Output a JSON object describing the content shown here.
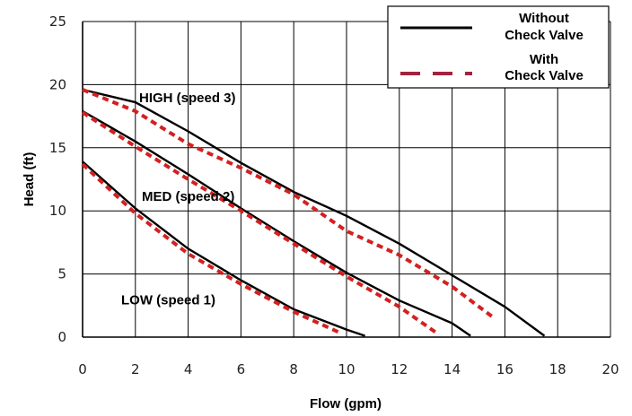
{
  "chart_data": {
    "type": "line",
    "xlabel": "Flow (gpm)",
    "ylabel": "Head (ft)",
    "xlim": [
      0,
      20
    ],
    "ylim": [
      0,
      25
    ],
    "x_ticks": [
      "0",
      "2",
      "4",
      "6",
      "8",
      "10",
      "12",
      "14",
      "16",
      "18",
      "20"
    ],
    "y_ticks": [
      "0",
      "5",
      "10",
      "15",
      "20",
      "25"
    ],
    "grid": true,
    "legend_position": "top-right",
    "legend": [
      {
        "label_line1": "Without",
        "label_line2": "Check Valve",
        "color": "#000000",
        "style": "solid"
      },
      {
        "label_line1": "With",
        "label_line2": "Check Valve",
        "color": "#d42020",
        "style": "dashed"
      }
    ],
    "curves": [
      {
        "label": "HIGH (speed 3)",
        "without": [
          [
            0,
            19.6
          ],
          [
            2,
            18.6
          ],
          [
            4,
            16.3
          ],
          [
            6,
            13.8
          ],
          [
            8,
            11.5
          ],
          [
            10,
            9.6
          ],
          [
            12,
            7.4
          ],
          [
            14,
            4.9
          ],
          [
            16,
            2.4
          ],
          [
            17.5,
            0.1
          ]
        ],
        "with": [
          [
            0,
            19.6
          ],
          [
            2,
            17.9
          ],
          [
            4,
            15.3
          ],
          [
            6,
            13.4
          ],
          [
            8,
            11.3
          ],
          [
            10,
            8.4
          ],
          [
            12,
            6.5
          ],
          [
            14,
            4.0
          ],
          [
            15.6,
            1.5
          ]
        ]
      },
      {
        "label": "MED (speed 2)",
        "without": [
          [
            0,
            17.9
          ],
          [
            2,
            15.5
          ],
          [
            4,
            12.9
          ],
          [
            6,
            10.2
          ],
          [
            8,
            7.6
          ],
          [
            10,
            5.1
          ],
          [
            12,
            2.9
          ],
          [
            14,
            1.1
          ],
          [
            14.7,
            0.1
          ]
        ],
        "with": [
          [
            0,
            17.8
          ],
          [
            2,
            15.1
          ],
          [
            4,
            12.5
          ],
          [
            6,
            10.0
          ],
          [
            8,
            7.4
          ],
          [
            10,
            4.8
          ],
          [
            12,
            2.4
          ],
          [
            13.5,
            0.2
          ]
        ]
      },
      {
        "label": "LOW (speed 1)",
        "without": [
          [
            0,
            13.9
          ],
          [
            2,
            10.2
          ],
          [
            4,
            7.0
          ],
          [
            6,
            4.5
          ],
          [
            8,
            2.2
          ],
          [
            10,
            0.6
          ],
          [
            10.7,
            0.1
          ]
        ],
        "with": [
          [
            0,
            13.7
          ],
          [
            2,
            9.8
          ],
          [
            4,
            6.6
          ],
          [
            6,
            4.2
          ],
          [
            8,
            2.0
          ],
          [
            9.8,
            0.3
          ]
        ]
      }
    ]
  },
  "colors": {
    "without_line": "#000000",
    "with_line": "#d42020",
    "legend_with_swatch": "#a6213f",
    "grid": "#000000",
    "axis": "#222222"
  }
}
